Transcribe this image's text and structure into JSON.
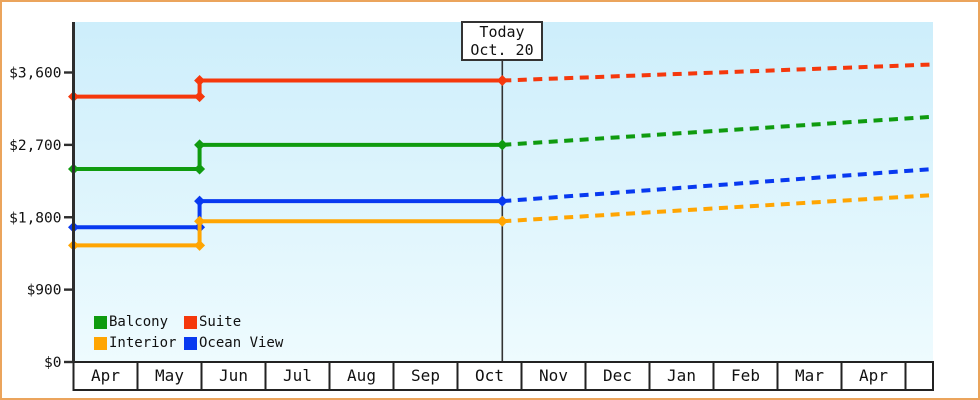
{
  "window": {
    "border_color": "#eba45c",
    "plot_bg_top": "#cdeefb",
    "plot_bg_bottom": "#eefbfe"
  },
  "chart_data": {
    "type": "line",
    "description_seen_in_pixels_only": "",
    "today_annotation": {
      "lines": [
        "Today",
        "Oct. 20"
      ],
      "x": 6.7
    },
    "x_axis": {
      "months": [
        "Apr",
        "May",
        "Jun",
        "Jul",
        "Aug",
        "Sep",
        "Oct",
        "Nov",
        "Dec",
        "Jan",
        "Feb",
        "Mar",
        "Apr"
      ],
      "has_trailing_partial_cell": true
    },
    "y_axis": {
      "ticks": [
        {
          "label": "$0",
          "value": 0
        },
        {
          "label": "$900",
          "value": 900
        },
        {
          "label": "$1,800",
          "value": 1800
        },
        {
          "label": "$2,700",
          "value": 2700
        },
        {
          "label": "$3,600",
          "value": 3600
        }
      ],
      "ylim": [
        0,
        4225
      ]
    },
    "series": [
      {
        "name": "Ocean View",
        "color": "#0839f0",
        "history": [
          {
            "x": 0,
            "value": 1675
          },
          {
            "x": 1.97,
            "value": 1675
          },
          {
            "x": 1.97,
            "value": 2000
          },
          {
            "x": 6.7,
            "value": 2000
          }
        ],
        "forecast": [
          {
            "x": 6.7,
            "value": 2000
          },
          {
            "x": 13.43,
            "value": 2400
          }
        ]
      },
      {
        "name": "Interior",
        "color": "#ffa502",
        "history": [
          {
            "x": 0,
            "value": 1450
          },
          {
            "x": 1.97,
            "value": 1450
          },
          {
            "x": 1.97,
            "value": 1750
          },
          {
            "x": 6.7,
            "value": 1750
          }
        ],
        "forecast": [
          {
            "x": 6.7,
            "value": 1750
          },
          {
            "x": 13.43,
            "value": 2075
          }
        ]
      },
      {
        "name": "Balcony",
        "color": "#0f9b0f",
        "history": [
          {
            "x": 0,
            "value": 2400
          },
          {
            "x": 1.97,
            "value": 2400
          },
          {
            "x": 1.97,
            "value": 2700
          },
          {
            "x": 6.7,
            "value": 2700
          }
        ],
        "forecast": [
          {
            "x": 6.7,
            "value": 2700
          },
          {
            "x": 13.43,
            "value": 3050
          }
        ]
      },
      {
        "name": "Suite",
        "color": "#f5380c",
        "history": [
          {
            "x": 0,
            "value": 3300
          },
          {
            "x": 1.97,
            "value": 3300
          },
          {
            "x": 1.97,
            "value": 3500
          },
          {
            "x": 6.7,
            "value": 3500
          }
        ],
        "forecast": [
          {
            "x": 6.7,
            "value": 3500
          },
          {
            "x": 13.43,
            "value": 3700
          }
        ]
      }
    ],
    "legend": {
      "items": [
        {
          "label": "Balcony",
          "color": "#0f9b0f"
        },
        {
          "label": "Suite",
          "color": "#f5380c"
        },
        {
          "label": "Interior",
          "color": "#ffa502"
        },
        {
          "label": "Ocean View",
          "color": "#0839f0"
        }
      ]
    }
  }
}
